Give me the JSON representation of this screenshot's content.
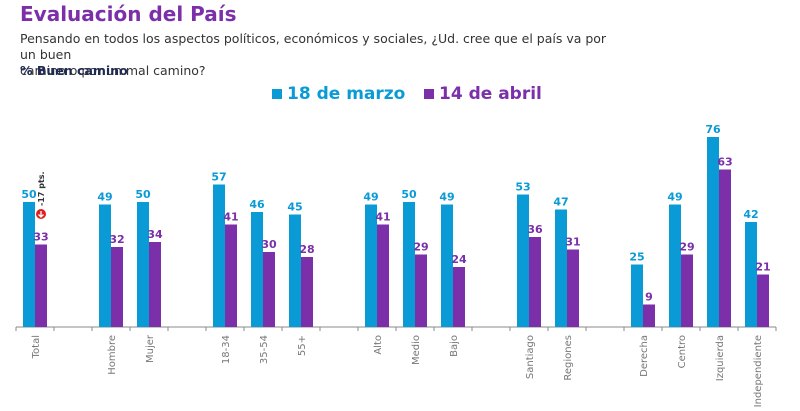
{
  "header": {
    "title": "Evaluación del País",
    "question_line1": "Pensando en todos los aspectos políticos, económicos y sociales, ¿Ud. cree que el país va por un buen",
    "question_line2": "camino o por un mal camino?",
    "metric": "% Buen camino"
  },
  "colors": {
    "series1": "#0a9bd6",
    "series2": "#7b2fa8",
    "annotation": "#e02020"
  },
  "annotation": {
    "text": "-17 pts.",
    "icon": "down-arrow-icon"
  },
  "chart_data": {
    "type": "bar",
    "title": "Evaluación del País",
    "subtitle": "% Buen camino",
    "xlabel": "",
    "ylabel": "",
    "ylim": [
      0,
      80
    ],
    "grid": false,
    "legend_position": "top-center",
    "categories": [
      "Total",
      "",
      "Hombre",
      "Mujer",
      "",
      "18-34",
      "35-54",
      "55+",
      "",
      "Alto",
      "Medio",
      "Bajo",
      "",
      "Santiago",
      "Regiones",
      "",
      "Derecha",
      "Centro",
      "Izquierda",
      "Independiente"
    ],
    "series": [
      {
        "name": "18 de marzo",
        "values": [
          50,
          null,
          49,
          50,
          null,
          57,
          46,
          45,
          null,
          49,
          50,
          49,
          null,
          53,
          47,
          null,
          25,
          49,
          76,
          42
        ]
      },
      {
        "name": "14 de abril",
        "values": [
          33,
          null,
          32,
          34,
          null,
          41,
          30,
          28,
          null,
          41,
          29,
          24,
          null,
          36,
          31,
          null,
          9,
          29,
          63,
          21
        ]
      }
    ]
  }
}
